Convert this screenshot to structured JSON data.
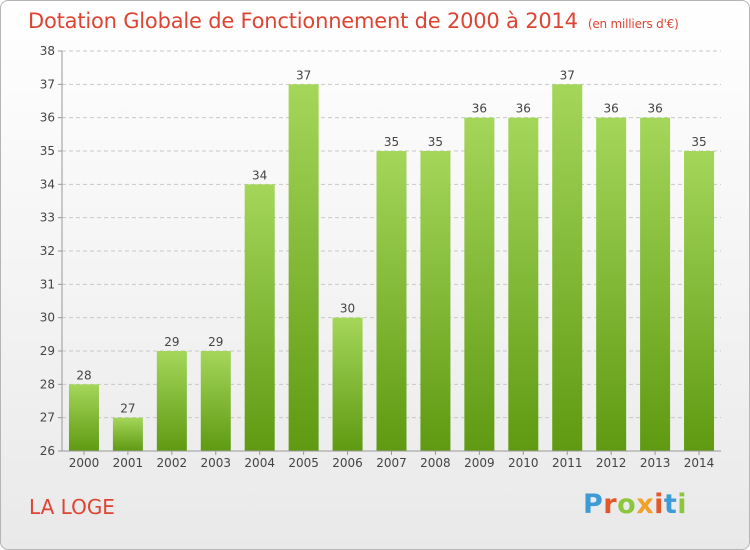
{
  "title": "Dotation Globale de Fonctionnement de 2000 à 2014",
  "unit": "(en milliers d'€)",
  "place": "LA LOGE",
  "logo": {
    "text": "Proxiti",
    "colors": [
      "#3d9bd6",
      "#e3572b",
      "#8cc63f",
      "#f2a02d",
      "#e3572b",
      "#3d9bd6",
      "#8cc63f"
    ]
  },
  "colors": {
    "bar_light": "#a4d65a",
    "bar_dark": "#5f9a12",
    "title": "#dd4433"
  },
  "chart_data": {
    "type": "bar",
    "title": "Dotation Globale de Fonctionnement de 2000 à 2014",
    "xlabel": "",
    "ylabel": "",
    "ylim": [
      26,
      38
    ],
    "yticks": [
      26,
      27,
      28,
      29,
      30,
      31,
      32,
      33,
      34,
      35,
      36,
      37,
      38
    ],
    "grid": true,
    "categories": [
      "2000",
      "2001",
      "2002",
      "2003",
      "2004",
      "2005",
      "2006",
      "2007",
      "2008",
      "2009",
      "2010",
      "2011",
      "2012",
      "2013",
      "2014"
    ],
    "values": [
      28,
      27,
      29,
      29,
      34,
      37,
      30,
      35,
      35,
      36,
      36,
      37,
      36,
      36,
      35
    ]
  }
}
